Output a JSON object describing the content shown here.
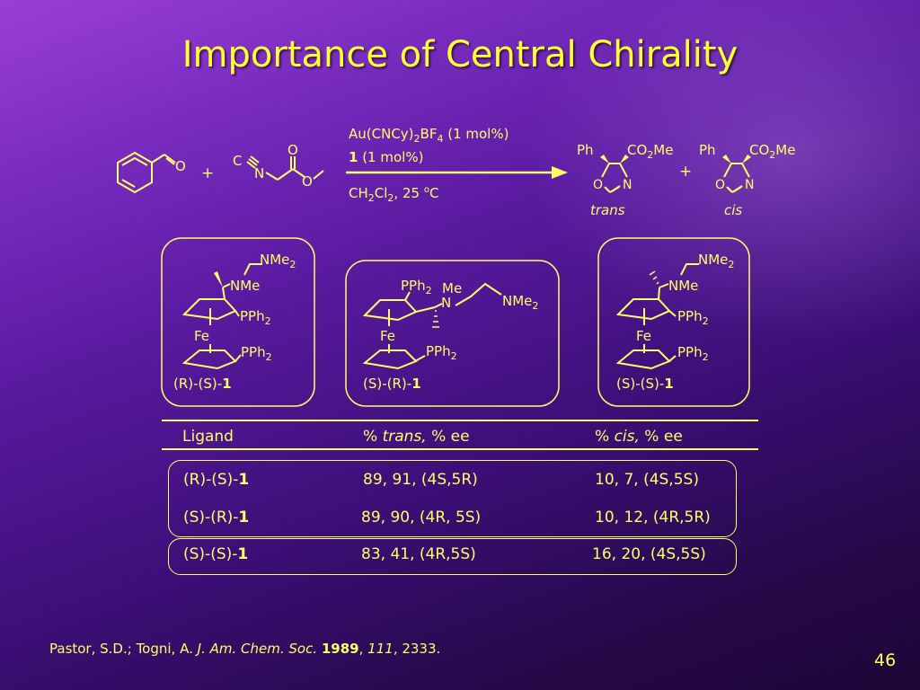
{
  "slide": {
    "title": "Importance of Central Chirality",
    "page_number": "46"
  },
  "reaction": {
    "plus": "+",
    "aldehyde_o": "O",
    "isocyanide_c": "C",
    "isocyanide_n": "N",
    "ester_o_carbonyl": "O",
    "ester_o": "O",
    "catalyst_line1_a": "Au(CNCy)",
    "catalyst_line1_sub2": "2",
    "catalyst_line1_b": "BF",
    "catalyst_line1_sub4": "4",
    "catalyst_line1_c": " (1 mol%)",
    "ligand_bold": "1",
    "ligand_loading": " (1 mol%)",
    "solvent_a": "CH",
    "solvent_sub2a": "2",
    "solvent_b": "Cl",
    "solvent_sub2b": "2",
    "solvent_c": ", 25 ",
    "solvent_sup": "o",
    "solvent_d": "C",
    "product_ph": "Ph",
    "product_co2me_a": "CO",
    "product_co2me_sub": "2",
    "product_co2me_b": "Me",
    "ring_o": "O",
    "ring_n": "N",
    "trans_label": "trans",
    "cis_label": "cis"
  },
  "ligands": [
    {
      "nme2_a": "NMe",
      "nme2_sub": "2",
      "nme": "NMe",
      "pph2_a": "PPh",
      "pph2_sub": "2",
      "fe": "Fe",
      "label_a": "(R)-(S)-",
      "label_b": "1"
    },
    {
      "pph2_a": "PPh",
      "pph2_sub": "2",
      "me": "Me",
      "n": "N",
      "nme2_a": "NMe",
      "nme2_sub": "2",
      "fe": "Fe",
      "label_a": "(S)-(R)-",
      "label_b": "1"
    },
    {
      "nme2_a": "NMe",
      "nme2_sub": "2",
      "nme": "NMe",
      "pph2_a": "PPh",
      "pph2_sub": "2",
      "fe": "Fe",
      "label_a": "(S)-(S)-",
      "label_b": "1"
    }
  ],
  "table": {
    "headers": {
      "ligand": "Ligand",
      "trans_a": "% ",
      "trans_b": "trans,",
      "trans_c": " % ee",
      "cis_a": "% ",
      "cis_b": "cis,",
      "cis_c": " % ee"
    },
    "rows": [
      {
        "ligand_a": "(R)-(S)-",
        "ligand_b": "1",
        "trans": "89, 91, (4S,5R)",
        "cis": "10, 7, (4S,5S)"
      },
      {
        "ligand_a": "(S)-(R)-",
        "ligand_b": "1",
        "trans": "89, 90, (4R, 5S)",
        "cis": "10, 12, (4R,5R)"
      },
      {
        "ligand_a": "(S)-(S)-",
        "ligand_b": "1",
        "trans": "83, 41, (4R,5S)",
        "cis": "16, 20, (4S,5S)"
      }
    ]
  },
  "citation": {
    "authors": "Pastor, S.D.; Togni, A. ",
    "journal": "J. Am. Chem. Soc.",
    "space": " ",
    "year": "1989",
    "comma1": ", ",
    "volume": "111",
    "pages": ", 2333."
  },
  "colors": {
    "text": "#ffff66",
    "title": "#ffff33"
  }
}
